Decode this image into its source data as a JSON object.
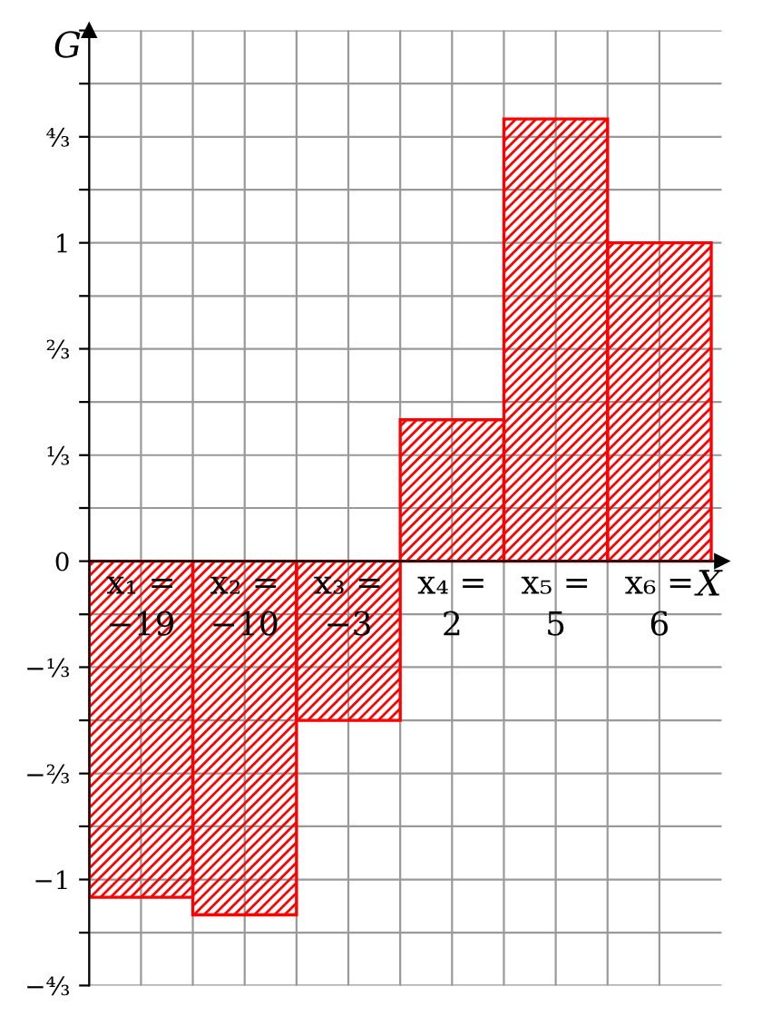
{
  "chart_data": {
    "type": "bar",
    "xlabel": "X",
    "ylabel": "G",
    "categories": [
      "x₁ =\n−19",
      "x₂ =\n−10",
      "x₃ =\n−3",
      "x₄ =\n2",
      "x₅ =\n5",
      "x₆ =\n6"
    ],
    "values": [
      -1.056,
      -1.111,
      -0.5,
      0.444,
      1.389,
      1.0
    ],
    "color": "#ff0000",
    "ylim": [
      -1.333,
      1.667
    ],
    "yticks": [
      {
        "value": -1.333,
        "label": "−⁴⁄₃"
      },
      {
        "value": -1.167,
        "label": null
      },
      {
        "value": -1,
        "label": "−1"
      },
      {
        "value": -0.833,
        "label": null
      },
      {
        "value": -0.667,
        "label": "−⅔"
      },
      {
        "value": -0.5,
        "label": null
      },
      {
        "value": -0.333,
        "label": "−⅓"
      },
      {
        "value": -0.167,
        "label": null
      },
      0,
      {
        "value": 0.167,
        "label": null
      },
      {
        "value": 0.333,
        "label": "⅓"
      },
      {
        "value": 0.5,
        "label": null
      },
      {
        "value": 0.667,
        "label": "⅔"
      },
      {
        "value": 0.833,
        "label": null
      },
      1,
      {
        "value": 1.167,
        "label": null
      },
      {
        "value": 1.333,
        "label": "⁴⁄₃"
      },
      {
        "value": 1.5,
        "label": null
      },
      {
        "value": 1.667,
        "label": null
      }
    ],
    "grid": true
  }
}
